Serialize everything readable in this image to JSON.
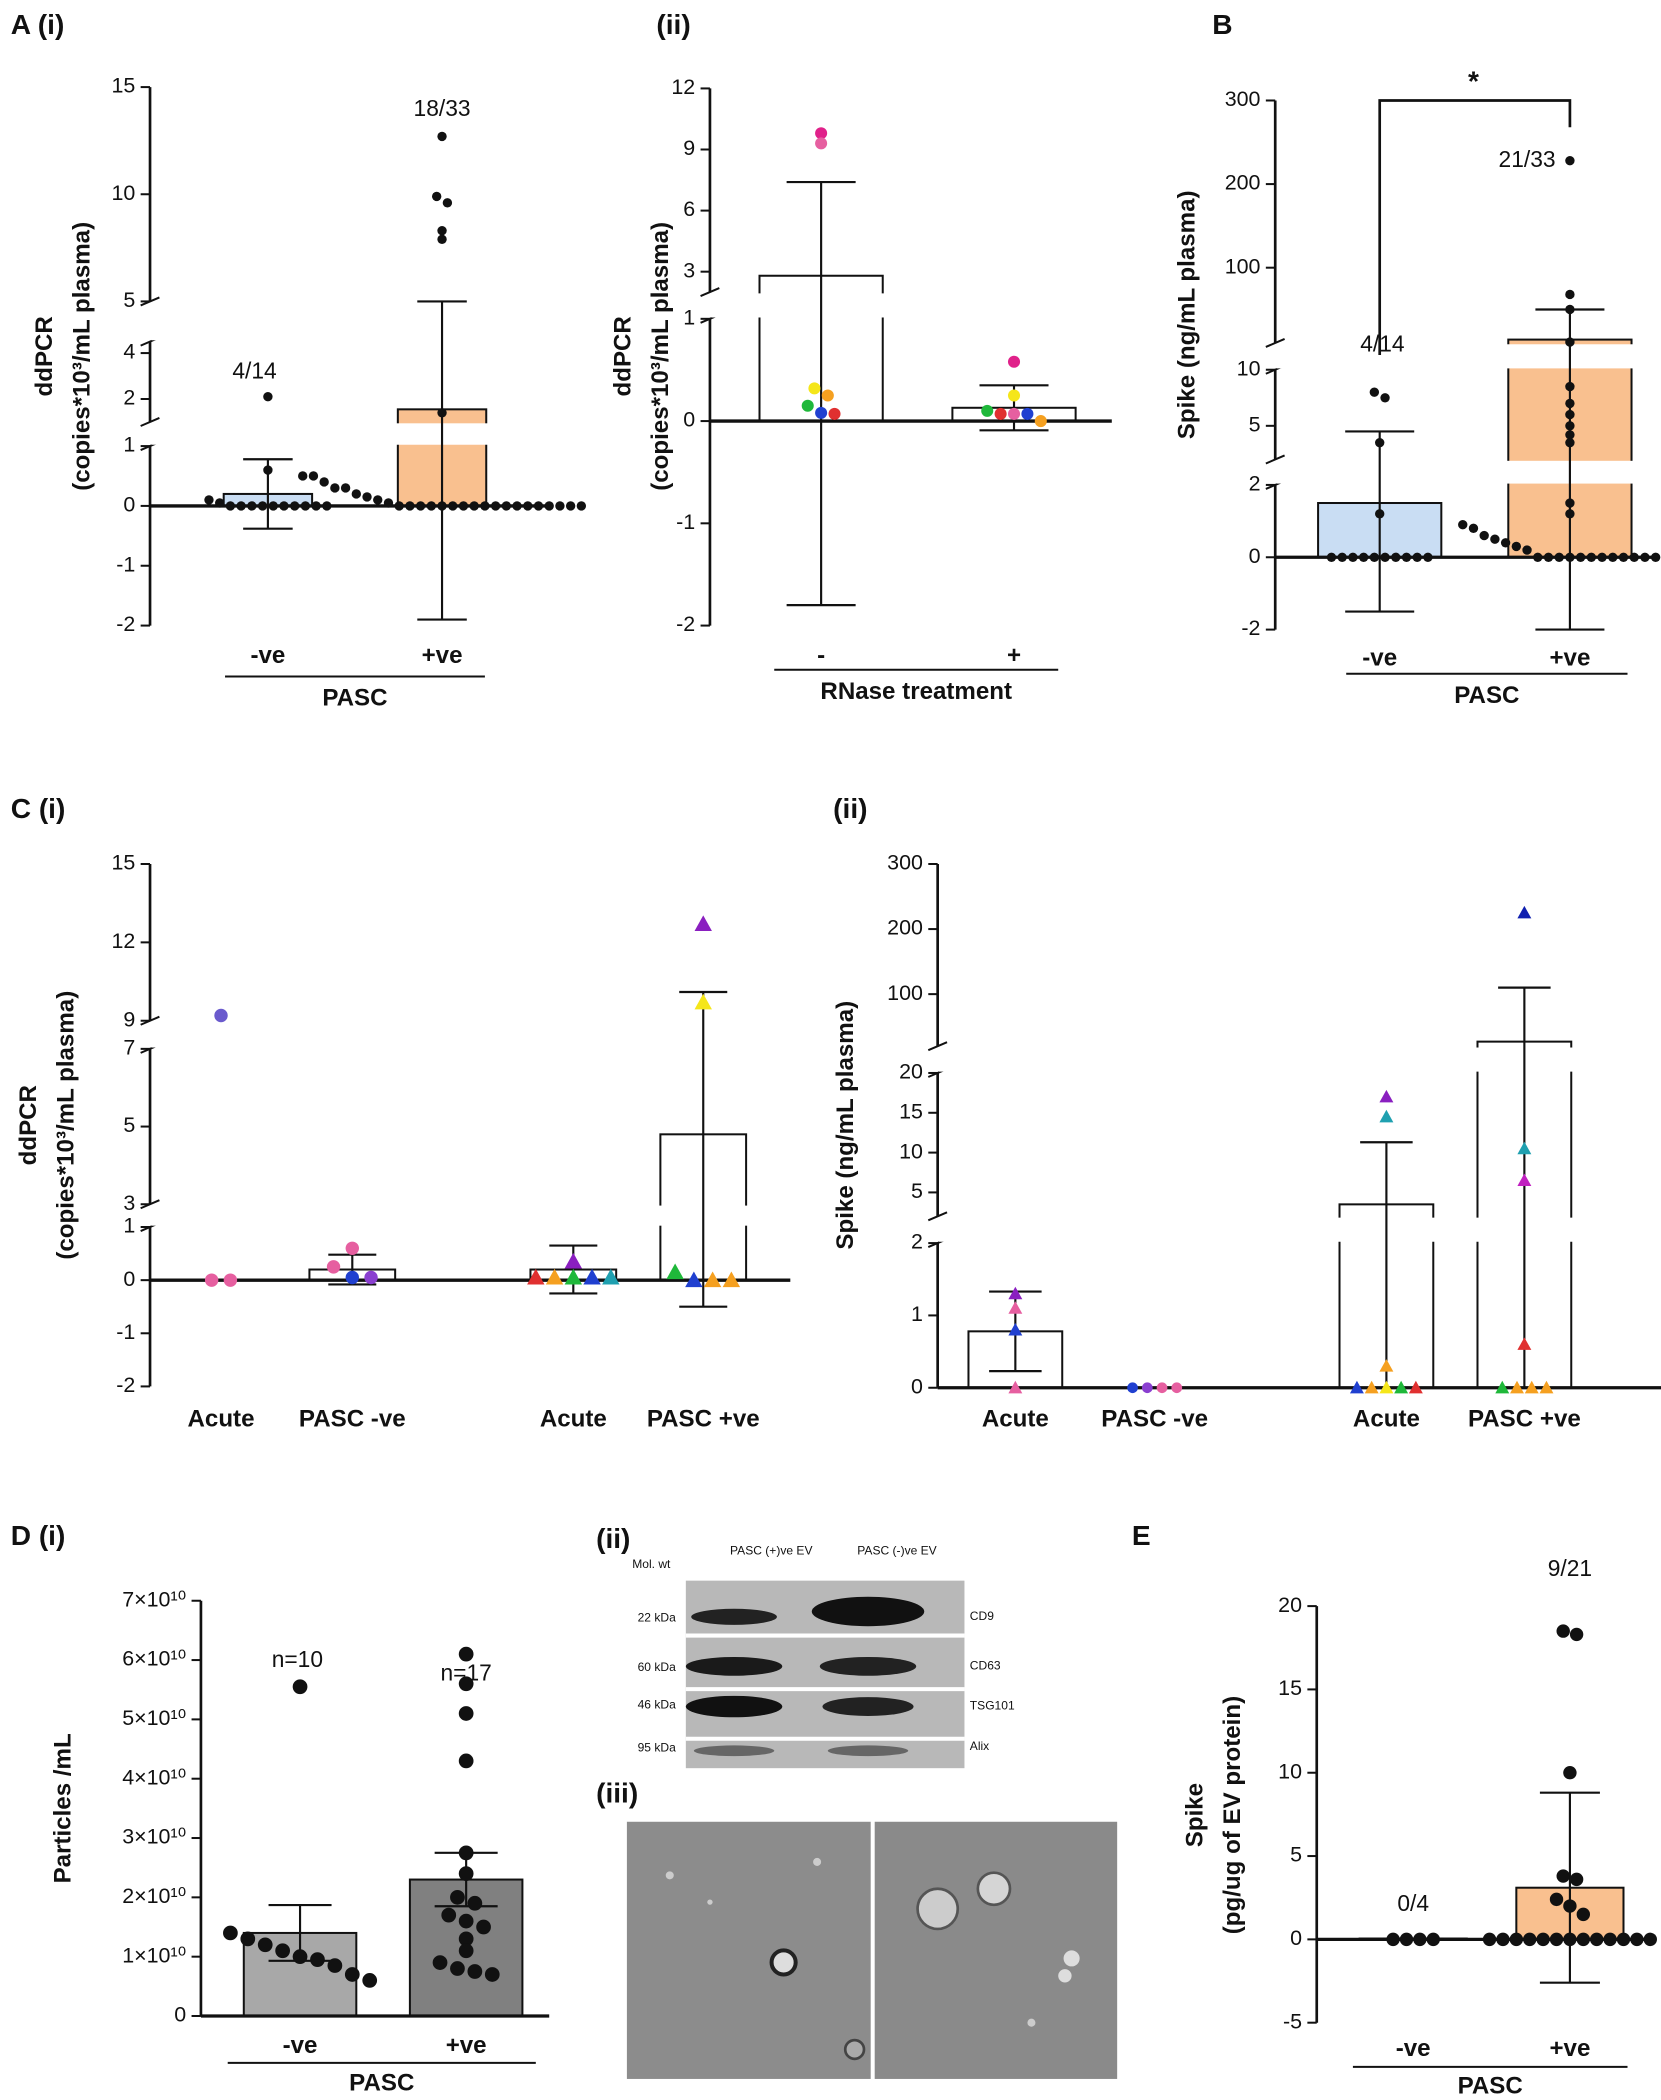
{
  "chart_data": [
    {
      "type": "bar",
      "title": "A (i)",
      "ylabel": [
        "ddPCR",
        "(copies*10³/mL plasma)"
      ],
      "xlabel": "PASC",
      "categories": [
        "-ve",
        "+ve"
      ],
      "values": [
        0.2,
        1.55
      ],
      "errors": [
        0.58,
        3.45
      ],
      "colors": [
        "#c9ddf3",
        "#f9c08f"
      ],
      "segments": [
        {
          "ylim": [
            -2,
            1
          ],
          "yticks": [
            -2,
            -1,
            0,
            1
          ]
        },
        {
          "ylim": [
            1,
            4.5
          ],
          "yticks": [
            2,
            4
          ]
        },
        {
          "ylim": [
            5,
            15
          ],
          "yticks": [
            5,
            10,
            15
          ]
        }
      ],
      "points": [
        [
          2.1,
          0.6,
          0.1,
          0.05,
          0,
          0,
          0,
          0,
          0,
          0,
          0,
          0,
          0,
          0
        ],
        [
          12.7,
          9.9,
          9.6,
          8.3,
          7.9,
          1.4,
          0.5,
          0.5,
          0.4,
          0.3,
          0.3,
          0.2,
          0.15,
          0.1,
          0.05,
          0,
          0,
          0,
          0,
          0,
          0,
          0,
          0,
          0,
          0,
          0,
          0,
          0,
          0,
          0,
          0,
          0,
          0
        ]
      ],
      "annotations": [
        "4/14",
        "18/33"
      ]
    },
    {
      "type": "bar",
      "title": "(ii)",
      "ylabel": [
        "ddPCR",
        "(copies*10³/mL plasma)"
      ],
      "xlabel": "RNase treatment",
      "categories": [
        "-",
        "+"
      ],
      "values": [
        2.8,
        0.13
      ],
      "errors": [
        4.6,
        0.22
      ],
      "colors": [
        "#ffffff",
        "#ffffff"
      ],
      "segments": [
        {
          "ylim": [
            -2,
            1
          ],
          "yticks": [
            -2,
            -1,
            0,
            1
          ]
        },
        {
          "ylim": [
            2,
            12
          ],
          "yticks": [
            3,
            6,
            9,
            12
          ]
        }
      ],
      "points": [
        [
          9.8,
          9.3,
          0.32,
          0.25,
          0.15,
          0.07,
          0.08
        ],
        [
          0.58,
          0.25,
          0.1,
          0.07,
          0.07,
          0.0,
          0.07
        ]
      ],
      "point_colors": [
        [
          "#e0218a",
          "#e65fa0",
          "#f5e61a",
          "#f5a020",
          "#1fb83a",
          "#e03030",
          "#2040d0"
        ],
        [
          "#e0218a",
          "#f5e61a",
          "#1fb83a",
          "#e03030",
          "#e65fa0",
          "#f5a020",
          "#2040d0"
        ]
      ]
    },
    {
      "type": "bar",
      "title": "B",
      "ylabel": [
        "Spike (ng/mL plasma)"
      ],
      "xlabel": "PASC",
      "categories": [
        "-ve",
        "+ve"
      ],
      "values": [
        1.5,
        14
      ],
      "errors": [
        3.0,
        36
      ],
      "colors": [
        "#c9ddf3",
        "#f9c08f"
      ],
      "segments": [
        {
          "ylim": [
            -2,
            2
          ],
          "yticks": [
            -2,
            0,
            2
          ]
        },
        {
          "ylim": [
            2,
            10
          ],
          "yticks": [
            5,
            10
          ]
        },
        {
          "ylim": [
            10,
            300
          ],
          "yticks": [
            100,
            200,
            300
          ]
        }
      ],
      "points": [
        [
          8.0,
          7.5,
          3.5,
          1.2,
          0,
          0,
          0,
          0,
          0,
          0,
          0,
          0,
          0,
          0
        ],
        [
          228,
          68,
          50,
          11,
          8.5,
          7,
          6,
          5,
          4.2,
          3.5,
          1.5,
          1.2,
          0.9,
          0.8,
          0.6,
          0.5,
          0.4,
          0.3,
          0.2,
          0,
          0,
          0,
          0,
          0,
          0,
          0,
          0,
          0,
          0,
          0,
          0,
          0,
          0
        ]
      ],
      "annotations": [
        "4/14",
        "21/33"
      ],
      "significance": "*"
    },
    {
      "type": "bar",
      "title": "C (i)",
      "ylabel": [
        "ddPCR",
        "(copies*10³/mL plasma)"
      ],
      "categories": [
        "Acute",
        "PASC -ve",
        "Acute",
        "PASC +ve"
      ],
      "values": [
        null,
        0.2,
        0.2,
        4.8
      ],
      "errors": [
        null,
        0.28,
        0.45,
        5.3
      ],
      "colors": [
        "#ffffff",
        "#ffffff",
        "#ffffff",
        "#ffffff"
      ],
      "markers": [
        "circle",
        "circle",
        "triangle",
        "triangle"
      ],
      "segments": [
        {
          "ylim": [
            -2,
            1
          ],
          "yticks": [
            -2,
            -1,
            0,
            1
          ]
        },
        {
          "ylim": [
            3,
            7
          ],
          "yticks": [
            3,
            5,
            7
          ]
        },
        {
          "ylim": [
            9,
            15
          ],
          "yticks": [
            9,
            12,
            15
          ]
        }
      ],
      "points": [
        [
          9.2,
          0,
          0
        ],
        [
          0.6,
          0.25,
          0.05,
          0.05
        ],
        [
          0.35,
          0.05,
          0.05,
          0.05,
          0.05,
          0.05
        ],
        [
          12.7,
          9.7,
          0.15,
          0,
          0,
          0
        ]
      ],
      "point_colors": [
        [
          "#6a5acd",
          "#e65fa0",
          "#e65fa0"
        ],
        [
          "#e65fa0",
          "#e65fa0",
          "#2040d0",
          "#8a3fd0"
        ],
        [
          "#8a1fc0",
          "#e03030",
          "#f5a020",
          "#1fb83a",
          "#2040d0",
          "#1fa0b0"
        ],
        [
          "#8a1fc0",
          "#f5e61a",
          "#1fb83a",
          "#2040d0",
          "#f5a020",
          "#f5a020"
        ]
      ]
    },
    {
      "type": "bar",
      "title": "(ii)",
      "ylabel": [
        "Spike (ng/mL plasma)"
      ],
      "categories": [
        "Acute",
        "PASC -ve",
        "Acute",
        "PASC +ve"
      ],
      "values": [
        0.78,
        0,
        3.5,
        27
      ],
      "errors": [
        0.55,
        0,
        7.8,
        83
      ],
      "colors": [
        "#ffffff",
        "#ffffff",
        "#ffffff",
        "#ffffff"
      ],
      "markers": [
        "triangle",
        "circle",
        "triangle",
        "triangle"
      ],
      "segments": [
        {
          "ylim": [
            0,
            2
          ],
          "yticks": [
            0,
            1,
            2
          ]
        },
        {
          "ylim": [
            2,
            20
          ],
          "yticks": [
            5,
            10,
            15,
            20
          ]
        },
        {
          "ylim": [
            20,
            300
          ],
          "yticks": [
            100,
            200,
            300
          ]
        }
      ],
      "points": [
        [
          1.3,
          1.1,
          0.8,
          0
        ],
        [
          0,
          0,
          0,
          0
        ],
        [
          17,
          14.5,
          0.3,
          0,
          0,
          0,
          0,
          0
        ],
        [
          225,
          10.5,
          6.5,
          0.6,
          0,
          0,
          0,
          0
        ]
      ],
      "point_colors": [
        [
          "#8a1fc0",
          "#e65fa0",
          "#2040d0",
          "#e65fa0"
        ],
        [
          "#2040d0",
          "#8a3fd0",
          "#e65fa0",
          "#e65fa0"
        ],
        [
          "#8a1fc0",
          "#1fa0b0",
          "#f5a020",
          "#2040d0",
          "#f5a020",
          "#f5e61a",
          "#1fb83a",
          "#e03030"
        ],
        [
          "#1020b0",
          "#1fa0b0",
          "#c020c0",
          "#e03030",
          "#1fb83a",
          "#f5a020",
          "#f5a020",
          "#f5a020"
        ]
      ]
    },
    {
      "type": "bar",
      "title": "D (i)",
      "ylabel": [
        "Particles /mL"
      ],
      "xlabel": "PASC",
      "categories": [
        "-ve",
        "+ve"
      ],
      "values": [
        14000000000,
        23000000000
      ],
      "errors": [
        4700000000,
        4500000000
      ],
      "colors": [
        "#a8a8a8",
        "#808080"
      ],
      "segments": [
        {
          "ylim": [
            0,
            70000000000
          ],
          "yticks": [
            0,
            {
              "value": 10000000000,
              "label": "1×10¹⁰"
            },
            {
              "value": 20000000000,
              "label": "2×10¹⁰"
            },
            {
              "value": 30000000000,
              "label": "3×10¹⁰"
            },
            {
              "value": 40000000000,
              "label": "4×10¹⁰"
            },
            {
              "value": 50000000000,
              "label": "5×10¹⁰"
            },
            {
              "value": 60000000000,
              "label": "6×10¹⁰"
            },
            {
              "value": 70000000000,
              "label": "7×10¹⁰"
            }
          ]
        }
      ],
      "points": [
        [
          55500000000,
          14000000000,
          13000000000,
          12000000000,
          11000000000,
          10000000000,
          9500000000,
          8500000000,
          7000000000,
          6000000000
        ],
        [
          61000000000,
          56000000000,
          51000000000,
          43000000000,
          27500000000,
          24000000000,
          20000000000,
          19000000000,
          17000000000,
          16000000000,
          15000000000,
          13000000000,
          11000000000,
          9000000000,
          8000000000,
          7500000000,
          7000000000
        ]
      ],
      "annotations": [
        "n=10",
        "n=17"
      ]
    },
    {
      "type": "bar",
      "title": "E",
      "ylabel": [
        "Spike",
        "(pg/ug of EV protein)"
      ],
      "xlabel": "PASC",
      "categories": [
        "-ve",
        "+ve"
      ],
      "values": [
        0.05,
        3.1
      ],
      "errors": [
        0,
        5.7
      ],
      "colors": [
        "#f9c08f",
        "#f9c08f"
      ],
      "segments": [
        {
          "ylim": [
            -5,
            20
          ],
          "yticks": [
            -5,
            0,
            5,
            10,
            15,
            20
          ]
        }
      ],
      "points": [
        [
          0,
          0,
          0,
          0
        ],
        [
          18.5,
          18.3,
          10,
          3.8,
          3.6,
          2.4,
          2.0,
          1.5,
          0,
          0,
          0,
          0,
          0,
          0,
          0,
          0,
          0,
          0,
          0,
          0,
          0
        ]
      ],
      "annotations": [
        "0/4",
        "9/21"
      ]
    }
  ],
  "blot": {
    "label": "(ii)",
    "lanes": [
      "PASC (+)ve EV",
      "PASC (-)ve EV"
    ],
    "mol_wt": "Mol. wt",
    "rows": [
      {
        "size": "22 kDa",
        "marker": "CD9"
      },
      {
        "size": "60 kDa",
        "marker": "CD63"
      },
      {
        "size": "46 kDa",
        "marker": "TSG101"
      },
      {
        "size": "95 kDa",
        "marker": "Alix"
      }
    ]
  },
  "em": {
    "label": "(iii)"
  }
}
